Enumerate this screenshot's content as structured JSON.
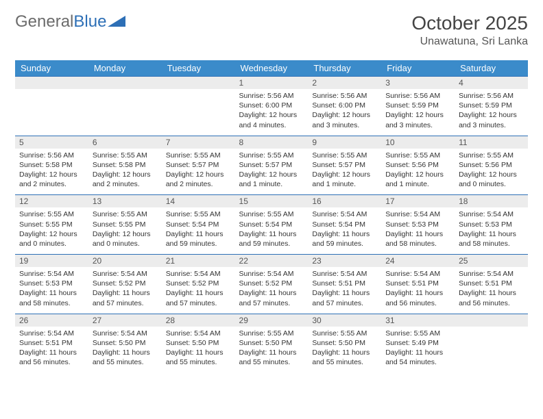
{
  "logo": {
    "part1": "General",
    "part2": "Blue"
  },
  "title": "October 2025",
  "location": "Unawatuna, Sri Lanka",
  "header_bg": "#3b8bca",
  "header_fg": "#ffffff",
  "daynum_bg": "#ececec",
  "rule_color": "#2d6fb6",
  "text_color": "#333333",
  "body_fontsize": 10.5,
  "daynames": [
    "Sunday",
    "Monday",
    "Tuesday",
    "Wednesday",
    "Thursday",
    "Friday",
    "Saturday"
  ],
  "weeks": [
    [
      null,
      null,
      null,
      {
        "n": "1",
        "sr": "5:56 AM",
        "ss": "6:00 PM",
        "dl": "12 hours and 4 minutes."
      },
      {
        "n": "2",
        "sr": "5:56 AM",
        "ss": "6:00 PM",
        "dl": "12 hours and 3 minutes."
      },
      {
        "n": "3",
        "sr": "5:56 AM",
        "ss": "5:59 PM",
        "dl": "12 hours and 3 minutes."
      },
      {
        "n": "4",
        "sr": "5:56 AM",
        "ss": "5:59 PM",
        "dl": "12 hours and 3 minutes."
      }
    ],
    [
      {
        "n": "5",
        "sr": "5:56 AM",
        "ss": "5:58 PM",
        "dl": "12 hours and 2 minutes."
      },
      {
        "n": "6",
        "sr": "5:55 AM",
        "ss": "5:58 PM",
        "dl": "12 hours and 2 minutes."
      },
      {
        "n": "7",
        "sr": "5:55 AM",
        "ss": "5:57 PM",
        "dl": "12 hours and 2 minutes."
      },
      {
        "n": "8",
        "sr": "5:55 AM",
        "ss": "5:57 PM",
        "dl": "12 hours and 1 minute."
      },
      {
        "n": "9",
        "sr": "5:55 AM",
        "ss": "5:57 PM",
        "dl": "12 hours and 1 minute."
      },
      {
        "n": "10",
        "sr": "5:55 AM",
        "ss": "5:56 PM",
        "dl": "12 hours and 1 minute."
      },
      {
        "n": "11",
        "sr": "5:55 AM",
        "ss": "5:56 PM",
        "dl": "12 hours and 0 minutes."
      }
    ],
    [
      {
        "n": "12",
        "sr": "5:55 AM",
        "ss": "5:55 PM",
        "dl": "12 hours and 0 minutes."
      },
      {
        "n": "13",
        "sr": "5:55 AM",
        "ss": "5:55 PM",
        "dl": "12 hours and 0 minutes."
      },
      {
        "n": "14",
        "sr": "5:55 AM",
        "ss": "5:54 PM",
        "dl": "11 hours and 59 minutes."
      },
      {
        "n": "15",
        "sr": "5:55 AM",
        "ss": "5:54 PM",
        "dl": "11 hours and 59 minutes."
      },
      {
        "n": "16",
        "sr": "5:54 AM",
        "ss": "5:54 PM",
        "dl": "11 hours and 59 minutes."
      },
      {
        "n": "17",
        "sr": "5:54 AM",
        "ss": "5:53 PM",
        "dl": "11 hours and 58 minutes."
      },
      {
        "n": "18",
        "sr": "5:54 AM",
        "ss": "5:53 PM",
        "dl": "11 hours and 58 minutes."
      }
    ],
    [
      {
        "n": "19",
        "sr": "5:54 AM",
        "ss": "5:53 PM",
        "dl": "11 hours and 58 minutes."
      },
      {
        "n": "20",
        "sr": "5:54 AM",
        "ss": "5:52 PM",
        "dl": "11 hours and 57 minutes."
      },
      {
        "n": "21",
        "sr": "5:54 AM",
        "ss": "5:52 PM",
        "dl": "11 hours and 57 minutes."
      },
      {
        "n": "22",
        "sr": "5:54 AM",
        "ss": "5:52 PM",
        "dl": "11 hours and 57 minutes."
      },
      {
        "n": "23",
        "sr": "5:54 AM",
        "ss": "5:51 PM",
        "dl": "11 hours and 57 minutes."
      },
      {
        "n": "24",
        "sr": "5:54 AM",
        "ss": "5:51 PM",
        "dl": "11 hours and 56 minutes."
      },
      {
        "n": "25",
        "sr": "5:54 AM",
        "ss": "5:51 PM",
        "dl": "11 hours and 56 minutes."
      }
    ],
    [
      {
        "n": "26",
        "sr": "5:54 AM",
        "ss": "5:51 PM",
        "dl": "11 hours and 56 minutes."
      },
      {
        "n": "27",
        "sr": "5:54 AM",
        "ss": "5:50 PM",
        "dl": "11 hours and 55 minutes."
      },
      {
        "n": "28",
        "sr": "5:54 AM",
        "ss": "5:50 PM",
        "dl": "11 hours and 55 minutes."
      },
      {
        "n": "29",
        "sr": "5:55 AM",
        "ss": "5:50 PM",
        "dl": "11 hours and 55 minutes."
      },
      {
        "n": "30",
        "sr": "5:55 AM",
        "ss": "5:50 PM",
        "dl": "11 hours and 55 minutes."
      },
      {
        "n": "31",
        "sr": "5:55 AM",
        "ss": "5:49 PM",
        "dl": "11 hours and 54 minutes."
      },
      null
    ]
  ],
  "labels": {
    "sunrise": "Sunrise:",
    "sunset": "Sunset:",
    "daylight": "Daylight:"
  }
}
